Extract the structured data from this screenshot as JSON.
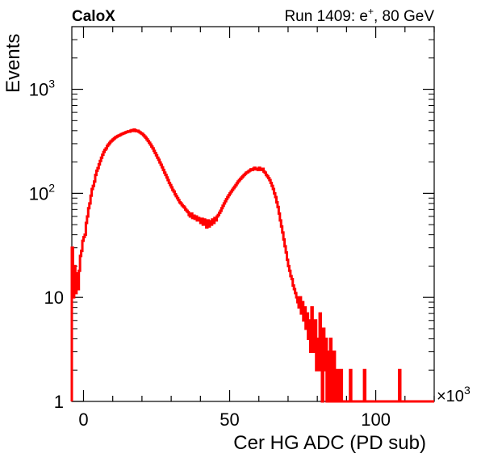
{
  "header": {
    "left_label": "CaloX",
    "right_label": "Run 1409: e",
    "right_sup": "+",
    "right_suffix": ", 80 GeV"
  },
  "chart_data": {
    "type": "histogram",
    "title": "",
    "xlabel": "Cer HG ADC (PD sub)",
    "ylabel": "Events",
    "x_multiplier": "×10",
    "x_multiplier_exp": "3",
    "xlim": [
      -4,
      120
    ],
    "ylim": [
      1,
      4000
    ],
    "y_scale": "log",
    "x_ticks": [
      0,
      50,
      100
    ],
    "y_ticks": [
      {
        "value": 1,
        "label": "1",
        "exp": ""
      },
      {
        "value": 10,
        "label": "10",
        "exp": ""
      },
      {
        "value": 100,
        "label": "10",
        "exp": "2"
      },
      {
        "value": 1000,
        "label": "10",
        "exp": "3"
      }
    ],
    "line_color": "#ff0000",
    "bin_width": 0.4,
    "series": [
      {
        "bins": [
          [
            -4.0,
            30
          ],
          [
            -3.6,
            10
          ],
          [
            -3.2,
            20
          ],
          [
            -2.8,
            11
          ],
          [
            -2.4,
            17
          ],
          [
            -2.0,
            12
          ],
          [
            -1.6,
            18
          ],
          [
            -1.2,
            25
          ],
          [
            -0.8,
            28
          ],
          [
            -0.4,
            35
          ],
          [
            0.0,
            38
          ],
          [
            0.4,
            40
          ],
          [
            0.8,
            52
          ],
          [
            1.2,
            60
          ],
          [
            1.6,
            72
          ],
          [
            2.0,
            80
          ],
          [
            2.4,
            95
          ],
          [
            2.8,
            110
          ],
          [
            3.2,
            118
          ],
          [
            3.6,
            130
          ],
          [
            4.0,
            150
          ],
          [
            4.4,
            165
          ],
          [
            4.8,
            175
          ],
          [
            5.2,
            190
          ],
          [
            5.6,
            205
          ],
          [
            6.0,
            220
          ],
          [
            6.4,
            235
          ],
          [
            6.8,
            250
          ],
          [
            7.2,
            262
          ],
          [
            7.6,
            270
          ],
          [
            8.0,
            285
          ],
          [
            8.4,
            295
          ],
          [
            8.8,
            305
          ],
          [
            9.2,
            315
          ],
          [
            9.6,
            322
          ],
          [
            10.0,
            330
          ],
          [
            10.4,
            338
          ],
          [
            10.8,
            345
          ],
          [
            11.2,
            350
          ],
          [
            11.6,
            356
          ],
          [
            12.0,
            360
          ],
          [
            12.4,
            364
          ],
          [
            12.8,
            370
          ],
          [
            13.2,
            374
          ],
          [
            13.6,
            378
          ],
          [
            14.0,
            382
          ],
          [
            14.4,
            386
          ],
          [
            14.8,
            390
          ],
          [
            15.2,
            394
          ],
          [
            15.6,
            392
          ],
          [
            16.0,
            400
          ],
          [
            16.4,
            405
          ],
          [
            16.8,
            398
          ],
          [
            17.2,
            410
          ],
          [
            17.6,
            402
          ],
          [
            18.0,
            396
          ],
          [
            18.4,
            400
          ],
          [
            18.8,
            392
          ],
          [
            19.2,
            385
          ],
          [
            19.6,
            378
          ],
          [
            20.0,
            372
          ],
          [
            20.4,
            362
          ],
          [
            20.8,
            352
          ],
          [
            21.2,
            342
          ],
          [
            21.6,
            330
          ],
          [
            22.0,
            318
          ],
          [
            22.4,
            306
          ],
          [
            22.8,
            294
          ],
          [
            23.2,
            282
          ],
          [
            23.6,
            270
          ],
          [
            24.0,
            256
          ],
          [
            24.4,
            244
          ],
          [
            24.8,
            232
          ],
          [
            25.2,
            220
          ],
          [
            25.6,
            210
          ],
          [
            26.0,
            198
          ],
          [
            26.4,
            188
          ],
          [
            26.8,
            178
          ],
          [
            27.2,
            168
          ],
          [
            27.6,
            158
          ],
          [
            28.0,
            150
          ],
          [
            28.4,
            142
          ],
          [
            28.8,
            134
          ],
          [
            29.2,
            126
          ],
          [
            29.6,
            120
          ],
          [
            30.0,
            114
          ],
          [
            30.4,
            108
          ],
          [
            30.8,
            104
          ],
          [
            31.2,
            98
          ],
          [
            31.6,
            94
          ],
          [
            32.0,
            90
          ],
          [
            32.4,
            86
          ],
          [
            32.8,
            82
          ],
          [
            33.2,
            80
          ],
          [
            33.6,
            77
          ],
          [
            34.0,
            75
          ],
          [
            34.4,
            73
          ],
          [
            34.8,
            70
          ],
          [
            35.2,
            68
          ],
          [
            35.6,
            66
          ],
          [
            36.0,
            62
          ],
          [
            36.4,
            60
          ],
          [
            36.8,
            64
          ],
          [
            37.2,
            58
          ],
          [
            37.6,
            61
          ],
          [
            38.0,
            57
          ],
          [
            38.4,
            60
          ],
          [
            38.8,
            55
          ],
          [
            39.2,
            58
          ],
          [
            39.6,
            56
          ],
          [
            40.0,
            52
          ],
          [
            40.4,
            57
          ],
          [
            40.8,
            50
          ],
          [
            41.2,
            56
          ],
          [
            41.6,
            53
          ],
          [
            42.0,
            47
          ],
          [
            42.4,
            55
          ],
          [
            42.8,
            48
          ],
          [
            43.2,
            54
          ],
          [
            43.6,
            50
          ],
          [
            44.0,
            56
          ],
          [
            44.4,
            52
          ],
          [
            44.8,
            58
          ],
          [
            45.2,
            55
          ],
          [
            45.6,
            60
          ],
          [
            46.0,
            62
          ],
          [
            46.4,
            65
          ],
          [
            46.8,
            68
          ],
          [
            47.2,
            72
          ],
          [
            47.6,
            76
          ],
          [
            48.0,
            80
          ],
          [
            48.4,
            84
          ],
          [
            48.8,
            88
          ],
          [
            49.2,
            92
          ],
          [
            49.6,
            96
          ],
          [
            50.0,
            100
          ],
          [
            50.4,
            104
          ],
          [
            50.8,
            108
          ],
          [
            51.2,
            112
          ],
          [
            51.6,
            116
          ],
          [
            52.0,
            120
          ],
          [
            52.4,
            125
          ],
          [
            52.8,
            130
          ],
          [
            53.2,
            134
          ],
          [
            53.6,
            138
          ],
          [
            54.0,
            142
          ],
          [
            54.4,
            146
          ],
          [
            54.8,
            150
          ],
          [
            55.2,
            154
          ],
          [
            55.6,
            158
          ],
          [
            56.0,
            160
          ],
          [
            56.4,
            163
          ],
          [
            56.8,
            166
          ],
          [
            57.2,
            170
          ],
          [
            57.6,
            168
          ],
          [
            58.0,
            172
          ],
          [
            58.4,
            176
          ],
          [
            58.8,
            170
          ],
          [
            59.2,
            172
          ],
          [
            59.6,
            168
          ],
          [
            60.0,
            176
          ],
          [
            60.4,
            170
          ],
          [
            60.8,
            168
          ],
          [
            61.2,
            172
          ],
          [
            61.6,
            162
          ],
          [
            62.0,
            158
          ],
          [
            62.4,
            150
          ],
          [
            62.8,
            146
          ],
          [
            63.2,
            140
          ],
          [
            63.6,
            134
          ],
          [
            64.0,
            126
          ],
          [
            64.4,
            118
          ],
          [
            64.8,
            110
          ],
          [
            65.2,
            100
          ],
          [
            65.6,
            92
          ],
          [
            66.0,
            82
          ],
          [
            66.4,
            74
          ],
          [
            66.8,
            64
          ],
          [
            67.2,
            55
          ],
          [
            67.6,
            48
          ],
          [
            68.0,
            42
          ],
          [
            68.4,
            36
          ],
          [
            68.8,
            31
          ],
          [
            69.2,
            27
          ],
          [
            69.6,
            23
          ],
          [
            70.0,
            20
          ],
          [
            70.4,
            18
          ],
          [
            70.8,
            16
          ],
          [
            71.2,
            15
          ],
          [
            71.6,
            13
          ],
          [
            72.0,
            12
          ],
          [
            72.4,
            11
          ],
          [
            72.8,
            10
          ],
          [
            73.2,
            9
          ],
          [
            73.6,
            8
          ],
          [
            74.0,
            10
          ],
          [
            74.4,
            7
          ],
          [
            74.8,
            9
          ],
          [
            75.2,
            6
          ],
          [
            75.6,
            8
          ],
          [
            76.0,
            5
          ],
          [
            76.4,
            7
          ],
          [
            76.8,
            4
          ],
          [
            77.2,
            6
          ],
          [
            77.6,
            3
          ],
          [
            78.0,
            8
          ],
          [
            78.4,
            5
          ],
          [
            78.8,
            3
          ],
          [
            79.2,
            6
          ],
          [
            79.6,
            2
          ],
          [
            80.0,
            4
          ],
          [
            80.4,
            2
          ],
          [
            80.8,
            7
          ],
          [
            81.2,
            3
          ],
          [
            81.6,
            1
          ],
          [
            82.0,
            5
          ],
          [
            82.4,
            2
          ],
          [
            82.8,
            4
          ],
          [
            83.2,
            1
          ],
          [
            83.6,
            3
          ],
          [
            84.0,
            1
          ],
          [
            84.4,
            4
          ],
          [
            84.8,
            2
          ],
          [
            85.2,
            1
          ],
          [
            85.6,
            3
          ],
          [
            86.0,
            1
          ],
          [
            86.4,
            1
          ],
          [
            86.8,
            2
          ],
          [
            87.2,
            1
          ],
          [
            87.6,
            1
          ],
          [
            88.0,
            2
          ],
          [
            88.4,
            1
          ],
          [
            88.8,
            1
          ],
          [
            89.2,
            1
          ],
          [
            89.6,
            1
          ],
          [
            90.0,
            1
          ],
          [
            90.4,
            1
          ],
          [
            90.8,
            1
          ],
          [
            91.2,
            2
          ],
          [
            91.6,
            1
          ],
          [
            92.0,
            1
          ],
          [
            92.4,
            1
          ],
          [
            92.8,
            1
          ],
          [
            93.2,
            1
          ],
          [
            93.6,
            1
          ],
          [
            94.0,
            1
          ],
          [
            94.4,
            1
          ],
          [
            94.8,
            1
          ],
          [
            95.2,
            1
          ],
          [
            95.6,
            1
          ],
          [
            96.0,
            2
          ],
          [
            96.4,
            1
          ],
          [
            96.8,
            1
          ],
          [
            97.2,
            1
          ],
          [
            97.6,
            1
          ],
          [
            98.0,
            1
          ],
          [
            98.4,
            1
          ],
          [
            98.8,
            1
          ],
          [
            99.2,
            1
          ],
          [
            99.6,
            1
          ],
          [
            100.0,
            1
          ],
          [
            100.4,
            1
          ],
          [
            100.8,
            1
          ],
          [
            101.2,
            1
          ],
          [
            101.6,
            1
          ],
          [
            102.0,
            1
          ],
          [
            102.4,
            1
          ],
          [
            102.8,
            1
          ],
          [
            103.2,
            1
          ],
          [
            103.6,
            1
          ],
          [
            104.0,
            1
          ],
          [
            104.4,
            1
          ],
          [
            104.8,
            1
          ],
          [
            105.2,
            1
          ],
          [
            105.6,
            1
          ],
          [
            106.0,
            1
          ],
          [
            106.4,
            1
          ],
          [
            106.8,
            1
          ],
          [
            107.2,
            1
          ],
          [
            107.6,
            1
          ],
          [
            108.0,
            2
          ],
          [
            108.4,
            1
          ],
          [
            108.8,
            1
          ],
          [
            109.2,
            1
          ],
          [
            109.6,
            1
          ],
          [
            110.0,
            1
          ],
          [
            110.4,
            1
          ],
          [
            110.8,
            1
          ],
          [
            111.2,
            1
          ],
          [
            111.6,
            1
          ],
          [
            112.0,
            1
          ],
          [
            112.4,
            1
          ],
          [
            112.8,
            1
          ],
          [
            113.2,
            1
          ],
          [
            113.6,
            1
          ],
          [
            114.0,
            1
          ],
          [
            114.4,
            1
          ],
          [
            114.8,
            1
          ],
          [
            115.2,
            1
          ],
          [
            115.6,
            1
          ],
          [
            116.0,
            1
          ],
          [
            116.4,
            1
          ],
          [
            116.8,
            1
          ],
          [
            117.2,
            1
          ],
          [
            117.6,
            1
          ],
          [
            118.0,
            1
          ],
          [
            118.4,
            1
          ],
          [
            118.8,
            1
          ],
          [
            119.2,
            1
          ],
          [
            119.6,
            1
          ]
        ]
      }
    ]
  }
}
